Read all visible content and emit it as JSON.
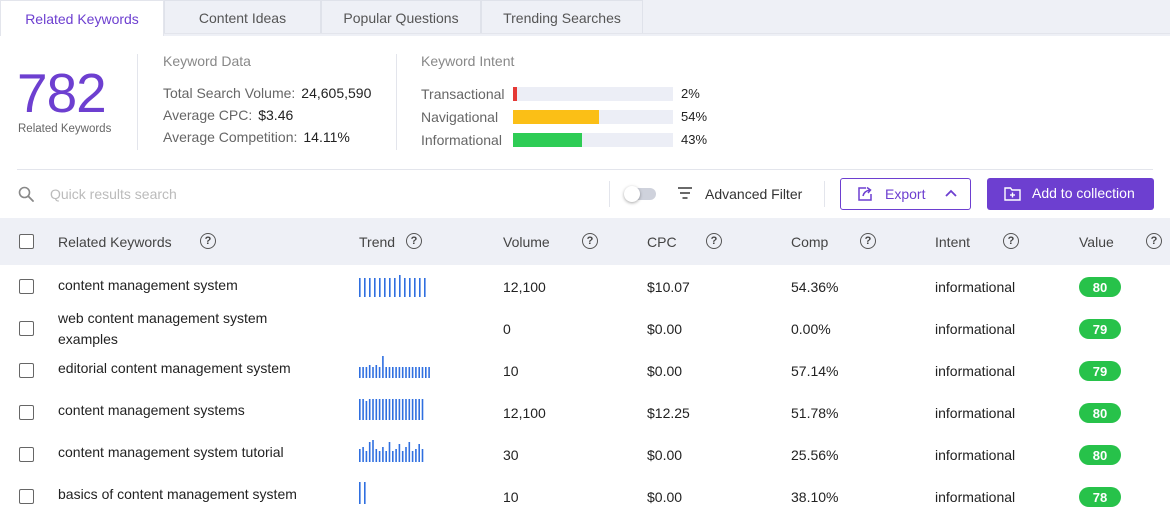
{
  "tabs": [
    "Related Keywords",
    "Content Ideas",
    "Popular Questions",
    "Trending Searches"
  ],
  "summary": {
    "count": "782",
    "count_label": "Related Keywords",
    "keyword_data": {
      "title": "Keyword Data",
      "rows": [
        {
          "label": "Total Search Volume:",
          "value": "24,605,590"
        },
        {
          "label": "Average CPC:",
          "value": "$3.46"
        },
        {
          "label": "Average Competition:",
          "value": "14.11%"
        }
      ]
    },
    "keyword_intent": {
      "title": "Keyword Intent",
      "rows": [
        {
          "label": "Transactional",
          "value": "2%",
          "fraction": 0.02,
          "color": "#e53935"
        },
        {
          "label": "Navigational",
          "value": "54%",
          "fraction": 0.54,
          "color": "#fbbf16"
        },
        {
          "label": "Informational",
          "value": "43%",
          "fraction": 0.43,
          "color": "#2ecc55"
        }
      ]
    }
  },
  "toolbar": {
    "search_placeholder": "Quick results search",
    "advanced_filter": "Advanced Filter",
    "export_label": "Export",
    "add_label": "Add to collection"
  },
  "table": {
    "headers": [
      "Related Keywords",
      "Trend",
      "Volume",
      "CPC",
      "Comp",
      "Intent",
      "Value"
    ],
    "rows": [
      {
        "keyword": "content management system",
        "volume": "12,100",
        "cpc": "$10.07",
        "comp": "54.36%",
        "intent": "informational",
        "value": "80",
        "trend": [
          0.85,
          0.85,
          0.85,
          0.85,
          0.85,
          0.85,
          0.85,
          0.85,
          1.0,
          0.85,
          0.85,
          0.85,
          0.85,
          0.85
        ]
      },
      {
        "keyword": "web content management system examples",
        "volume": "0",
        "cpc": "$0.00",
        "comp": "0.00%",
        "intent": "informational",
        "value": "79",
        "trend": []
      },
      {
        "keyword": "editorial content management system",
        "volume": "10",
        "cpc": "$0.00",
        "comp": "57.14%",
        "intent": "informational",
        "value": "79",
        "trend": [
          0.5,
          0.5,
          0.5,
          0.6,
          0.5,
          0.6,
          0.5,
          1.0,
          0.5,
          0.5,
          0.5,
          0.5,
          0.5,
          0.5,
          0.5,
          0.5,
          0.5,
          0.5,
          0.5,
          0.5,
          0.5,
          0.5
        ]
      },
      {
        "keyword": "content management systems",
        "volume": "12,100",
        "cpc": "$12.25",
        "comp": "51.78%",
        "intent": "informational",
        "value": "80",
        "trend": [
          0.95,
          0.95,
          0.85,
          0.95,
          0.95,
          0.95,
          0.95,
          0.95,
          0.95,
          0.95,
          0.95,
          0.95,
          0.95,
          0.95,
          0.95,
          0.95,
          0.95,
          0.95,
          0.95,
          0.95
        ]
      },
      {
        "keyword": "content management system tutorial",
        "volume": "30",
        "cpc": "$0.00",
        "comp": "25.56%",
        "intent": "informational",
        "value": "80",
        "trend": [
          0.6,
          0.7,
          0.5,
          0.9,
          1.0,
          0.6,
          0.5,
          0.7,
          0.5,
          0.9,
          0.5,
          0.6,
          0.8,
          0.5,
          0.7,
          0.9,
          0.5,
          0.6,
          0.8,
          0.6
        ]
      },
      {
        "keyword": "basics of content management system",
        "volume": "10",
        "cpc": "$0.00",
        "comp": "38.10%",
        "intent": "informational",
        "value": "78",
        "trend": [
          1.0,
          1.0
        ]
      }
    ]
  },
  "colors": {
    "accent": "#6d3fd0",
    "badge": "#27c24a",
    "trend": "#2f6fe0"
  }
}
